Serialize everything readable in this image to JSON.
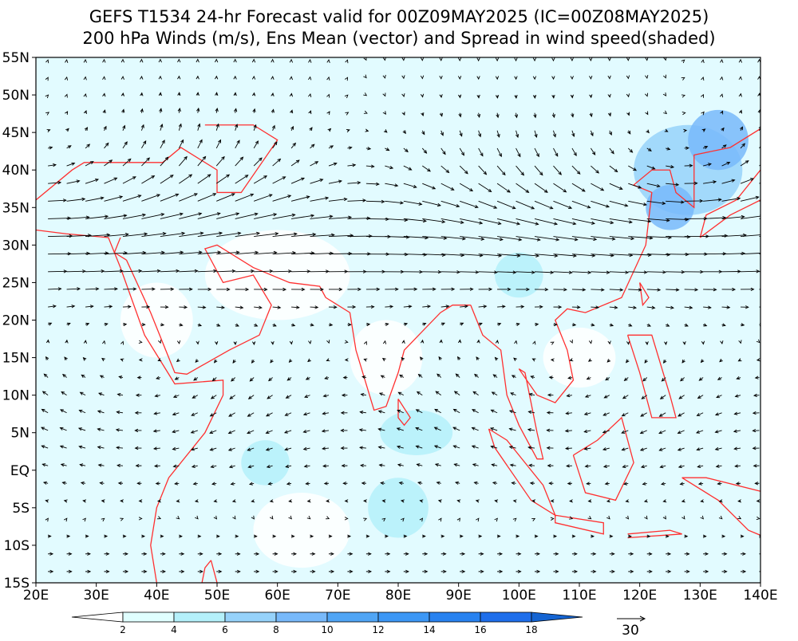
{
  "title": [
    "GEFS T1534 24-hr Forecast valid for 00Z09MAY2025 (IC=00Z08MAY2025)",
    "200 hPa Winds (m/s), Ens Mean (vector) and Spread in wind speed(shaded)"
  ],
  "map": {
    "lon_range": [
      20,
      140
    ],
    "lat_range": [
      -15,
      55
    ],
    "lon_ticks": [
      {
        "value": 20,
        "label": "20E"
      },
      {
        "value": 30,
        "label": "30E"
      },
      {
        "value": 40,
        "label": "40E"
      },
      {
        "value": 50,
        "label": "50E"
      },
      {
        "value": 60,
        "label": "60E"
      },
      {
        "value": 70,
        "label": "70E"
      },
      {
        "value": 80,
        "label": "80E"
      },
      {
        "value": 90,
        "label": "90E"
      },
      {
        "value": 100,
        "label": "100E"
      },
      {
        "value": 110,
        "label": "110E"
      },
      {
        "value": 120,
        "label": "120E"
      },
      {
        "value": 130,
        "label": "130E"
      },
      {
        "value": 140,
        "label": "140E"
      }
    ],
    "lat_ticks": [
      {
        "value": -15,
        "label": "15S"
      },
      {
        "value": -10,
        "label": "10S"
      },
      {
        "value": -5,
        "label": "5S"
      },
      {
        "value": 0,
        "label": "EQ"
      },
      {
        "value": 5,
        "label": "5N"
      },
      {
        "value": 10,
        "label": "10N"
      },
      {
        "value": 15,
        "label": "15N"
      },
      {
        "value": 20,
        "label": "20N"
      },
      {
        "value": 25,
        "label": "25N"
      },
      {
        "value": 30,
        "label": "30N"
      },
      {
        "value": 35,
        "label": "35N"
      },
      {
        "value": 40,
        "label": "40N"
      },
      {
        "value": 45,
        "label": "45N"
      },
      {
        "value": 50,
        "label": "50N"
      },
      {
        "value": 55,
        "label": "55N"
      }
    ]
  },
  "colorbar": {
    "levels": [
      2,
      4,
      6,
      8,
      10,
      12,
      14,
      16,
      18
    ],
    "colors": [
      "#ffffff",
      "#e0ffff",
      "#b4f0fa",
      "#96d2fa",
      "#78b9fa",
      "#50a5f5",
      "#3c97f5",
      "#2882f0",
      "#1e6eeb",
      "#1464d2"
    ]
  },
  "reference_vector": {
    "label": "30"
  }
}
